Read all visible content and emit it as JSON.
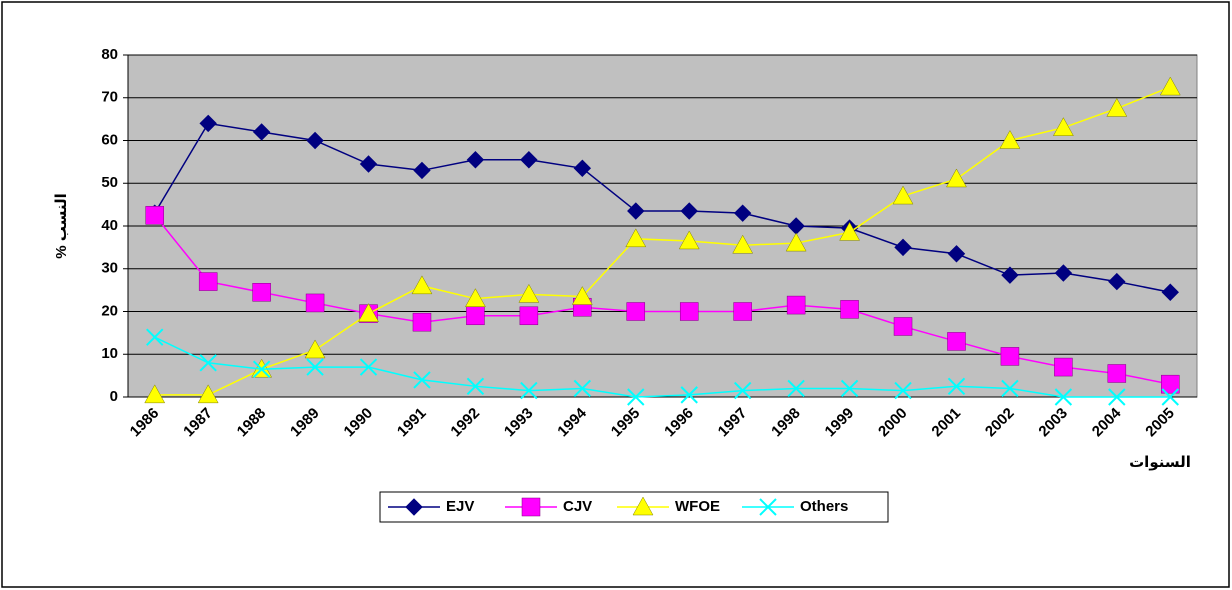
{
  "chart_data": {
    "type": "line",
    "y_label": "% النسب",
    "x_label": "السنوات",
    "categories": [
      "1986",
      "1987",
      "1988",
      "1989",
      "1990",
      "1991",
      "1992",
      "1993",
      "1994",
      "1995",
      "1996",
      "1997",
      "1998",
      "1999",
      "2000",
      "2001",
      "2002",
      "2003",
      "2004",
      "2005"
    ],
    "series": [
      {
        "name": "EJV",
        "color": "#000080",
        "marker": "diamond",
        "values": [
          43,
          64,
          62,
          60,
          54.5,
          53,
          55.5,
          55.5,
          53.5,
          43.5,
          43.5,
          43,
          40,
          39.5,
          35,
          33.5,
          28.5,
          29,
          27,
          24.5
        ]
      },
      {
        "name": "CJV",
        "color": "#ff00ff",
        "marker": "square",
        "values": [
          42.5,
          27,
          24.5,
          22,
          19.5,
          17.5,
          19,
          19,
          21,
          20,
          20,
          20,
          21.5,
          20.5,
          16.5,
          13,
          9.5,
          7,
          5.5,
          3
        ]
      },
      {
        "name": "WFOE",
        "color": "#ffff00",
        "marker": "triangle",
        "values": [
          0.5,
          0.5,
          6.5,
          11,
          19.5,
          26,
          23,
          24,
          23.5,
          37,
          36.5,
          35.5,
          36,
          38.5,
          47,
          51,
          60,
          63,
          67.5,
          72.5
        ]
      },
      {
        "name": "Others",
        "color": "#00ffff",
        "marker": "x",
        "values": [
          14,
          8,
          6.5,
          7,
          7,
          4,
          2.5,
          1.5,
          2,
          0,
          0.5,
          1.5,
          2,
          2,
          1.5,
          2.5,
          2,
          0,
          0,
          0
        ]
      }
    ],
    "ylim": [
      0,
      80
    ],
    "yticks": [
      0,
      10,
      20,
      30,
      40,
      50,
      60,
      70,
      80
    ],
    "grid": true,
    "legend": "bottom"
  }
}
